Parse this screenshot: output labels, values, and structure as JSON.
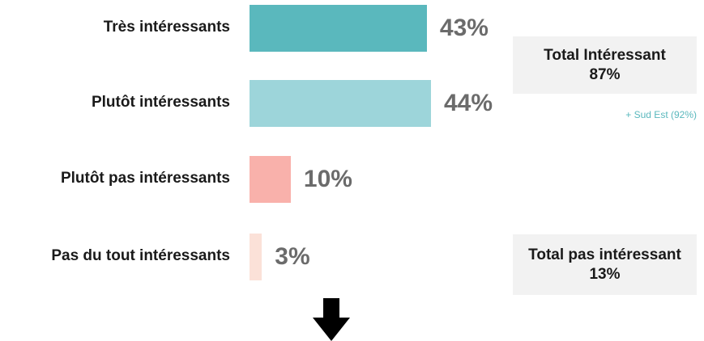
{
  "chart_data": {
    "type": "bar",
    "orientation": "horizontal",
    "categories": [
      "Très intéressants",
      "Plutôt intéressants",
      "Plutôt pas intéressants",
      "Pas du tout intéressants"
    ],
    "values": [
      43,
      44,
      10,
      3
    ],
    "value_labels": [
      "43%",
      "44%",
      "10%",
      "3%"
    ],
    "colors": [
      "#5ab8bd",
      "#9dd5da",
      "#f9b1ab",
      "#fbe1d8"
    ],
    "xlim": [
      0,
      100
    ],
    "title": "",
    "xlabel": "",
    "ylabel": ""
  },
  "summary": {
    "total_interessant": "Total Intéressant 87%",
    "sud_est_note": "+ Sud Est (92%)",
    "total_pas_interessant": "Total pas intéressant 13%"
  },
  "arrow_icon": "arrow-down-icon",
  "arrow_color": "#000000"
}
